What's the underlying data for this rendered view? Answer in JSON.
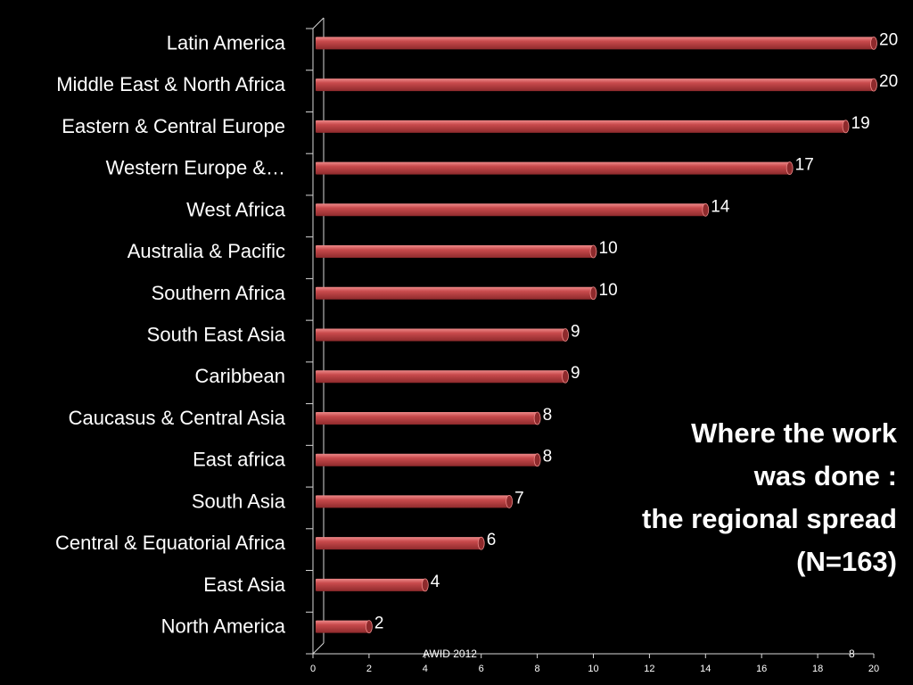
{
  "chart_data": {
    "type": "bar",
    "orientation": "horizontal",
    "title_lines": [
      "Where the work",
      "was done :",
      "the regional spread",
      "(N=163)"
    ],
    "categories": [
      "Latin America",
      "Middle East & North Africa",
      "Eastern & Central Europe",
      "Western Europe &…",
      "West Africa",
      "Australia & Pacific",
      "Southern Africa",
      "South East Asia",
      "Caribbean",
      "Caucasus & Central Asia",
      "East africa",
      "South Asia",
      "Central & Equatorial Africa",
      "East Asia",
      "North America"
    ],
    "values": [
      20,
      20,
      19,
      17,
      14,
      10,
      10,
      9,
      9,
      8,
      8,
      7,
      6,
      4,
      2
    ],
    "xlim": [
      0,
      20
    ],
    "xticks": [
      "0",
      "2",
      "4",
      "6",
      "8",
      "10",
      "12",
      "14",
      "16",
      "18",
      "20"
    ],
    "grid": false,
    "data_labels": true,
    "colors": {
      "bar": "#c84a4c",
      "bar_highlight": "#ee8a8a",
      "bar_shadow": "#8e2a2c",
      "background": "#000000",
      "axis": "#d9d9d9"
    }
  },
  "footer": {
    "source": "AWID 2012",
    "page_number": "8"
  }
}
